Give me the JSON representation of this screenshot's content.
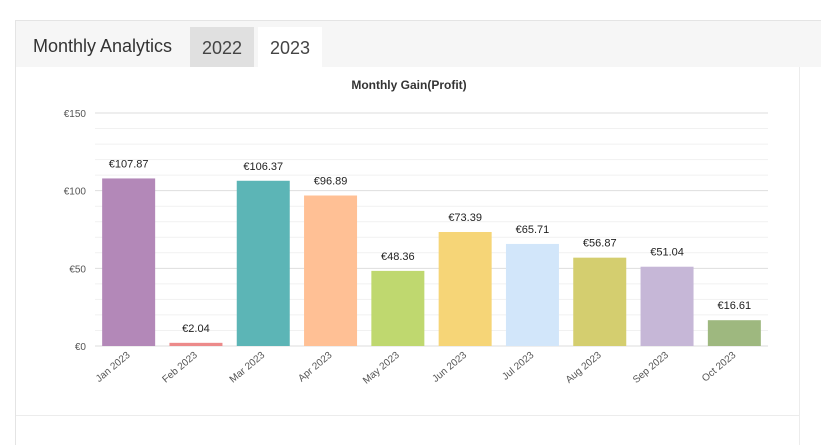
{
  "header": {
    "title": "Monthly Analytics",
    "tabs": [
      {
        "label": "2022",
        "active": false
      },
      {
        "label": "2023",
        "active": true
      }
    ]
  },
  "chart_data": {
    "type": "bar",
    "title": "Monthly Gain(Profit)",
    "xlabel": "",
    "ylabel": "",
    "ylim": [
      0,
      150
    ],
    "yticks": [
      0,
      50,
      100,
      150
    ],
    "ytick_labels": [
      "€0",
      "€50",
      "€100",
      "€150"
    ],
    "grid": true,
    "legend": "none",
    "categories": [
      "Jan 2023",
      "Feb 2023",
      "Mar 2023",
      "Apr 2023",
      "May 2023",
      "Jun 2023",
      "Jul 2023",
      "Aug 2023",
      "Sep 2023",
      "Oct 2023"
    ],
    "values": [
      107.87,
      2.04,
      106.37,
      96.89,
      48.36,
      73.39,
      65.71,
      56.87,
      51.04,
      16.61
    ],
    "data_labels": [
      "€107.87",
      "€2.04",
      "€106.37",
      "€96.89",
      "€48.36",
      "€73.39",
      "€65.71",
      "€56.87",
      "€51.04",
      "€16.61"
    ],
    "colors": [
      "#b388b8",
      "#ec8a8a",
      "#5cb5b6",
      "#ffc095",
      "#bfd86f",
      "#f6d577",
      "#d2e6fa",
      "#d4ce6f",
      "#c6b7d7",
      "#9eb87f"
    ]
  }
}
